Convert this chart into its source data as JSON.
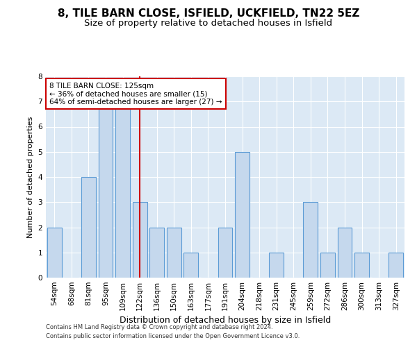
{
  "title": "8, TILE BARN CLOSE, ISFIELD, UCKFIELD, TN22 5EZ",
  "subtitle": "Size of property relative to detached houses in Isfield",
  "xlabel": "Distribution of detached houses by size in Isfield",
  "ylabel": "Number of detached properties",
  "categories": [
    "54sqm",
    "68sqm",
    "81sqm",
    "95sqm",
    "109sqm",
    "122sqm",
    "136sqm",
    "150sqm",
    "163sqm",
    "177sqm",
    "191sqm",
    "204sqm",
    "218sqm",
    "231sqm",
    "245sqm",
    "259sqm",
    "272sqm",
    "286sqm",
    "300sqm",
    "313sqm",
    "327sqm"
  ],
  "values": [
    2,
    0,
    4,
    7,
    7,
    3,
    2,
    2,
    1,
    0,
    2,
    5,
    0,
    1,
    0,
    3,
    1,
    2,
    1,
    0,
    1
  ],
  "bar_color": "#c5d8ed",
  "bar_edgecolor": "#5b9bd5",
  "highlight_line_color": "#cc0000",
  "highlight_line_index": 5,
  "annotation_text": "8 TILE BARN CLOSE: 125sqm\n← 36% of detached houses are smaller (15)\n64% of semi-detached houses are larger (27) →",
  "annotation_box_color": "#ffffff",
  "annotation_box_edgecolor": "#cc0000",
  "ylim": [
    0,
    8
  ],
  "yticks": [
    0,
    1,
    2,
    3,
    4,
    5,
    6,
    7,
    8
  ],
  "footer1": "Contains HM Land Registry data © Crown copyright and database right 2024.",
  "footer2": "Contains public sector information licensed under the Open Government Licence v3.0.",
  "background_color": "#dce9f5",
  "title_fontsize": 11,
  "subtitle_fontsize": 9.5,
  "tick_fontsize": 7.5,
  "ylabel_fontsize": 8,
  "xlabel_fontsize": 9,
  "annotation_fontsize": 7.5,
  "footer_fontsize": 6
}
